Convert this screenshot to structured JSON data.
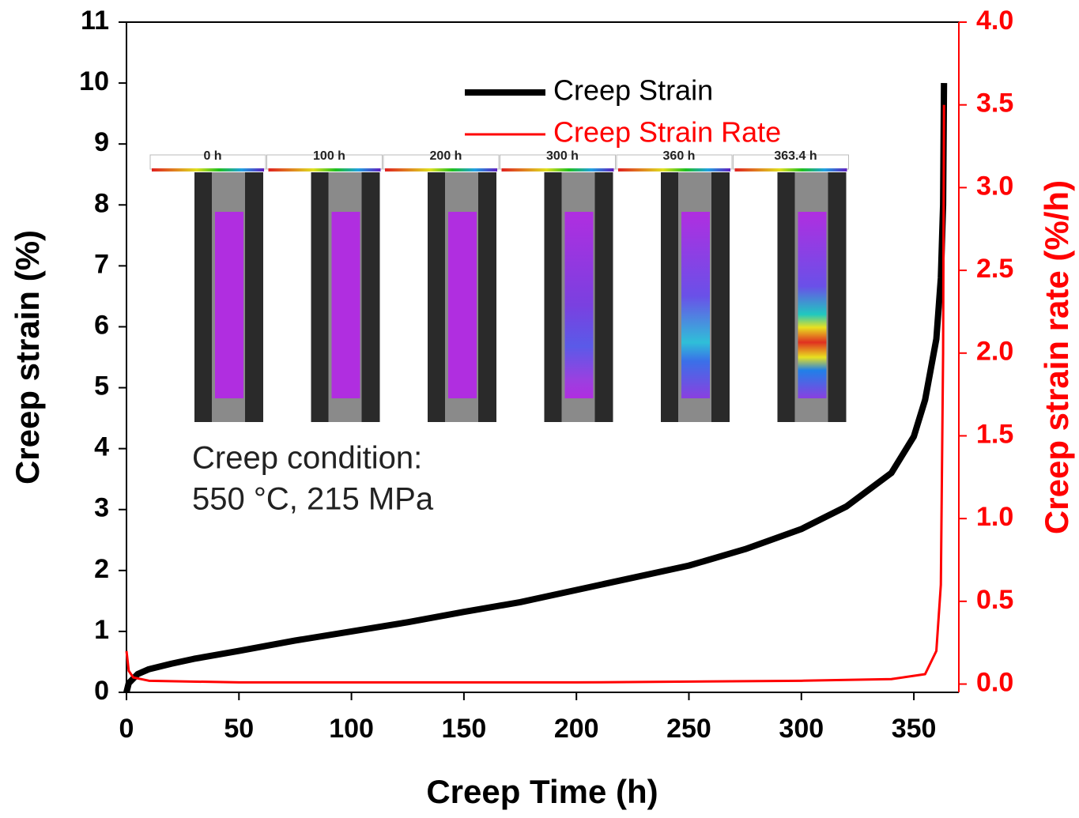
{
  "chart_data": {
    "type": "line",
    "x_label": "Creep Time (h)",
    "y_label": "Creep strain (%)",
    "y2_label": "Creep strain rate (%/h)",
    "xlim": [
      0,
      370
    ],
    "xticks": [
      0,
      50,
      100,
      150,
      200,
      250,
      300,
      350
    ],
    "ylim": [
      0,
      11
    ],
    "yticks": [
      0,
      1,
      2,
      3,
      4,
      5,
      6,
      7,
      8,
      9,
      10,
      11
    ],
    "y2lim": [
      -0.05,
      4.0
    ],
    "y2ticks": [
      {
        "value": 0,
        "label": "0.0"
      },
      0.5,
      {
        "value": 1,
        "label": "1.0"
      },
      1.5,
      {
        "value": 2,
        "label": "2.0"
      },
      2.5,
      {
        "value": 3,
        "label": "3.0"
      },
      3.5,
      {
        "value": 4,
        "label": "4.0"
      }
    ],
    "series": [
      {
        "name": "Creep Strain",
        "color": "#000000",
        "x": [
          0,
          1,
          5,
          10,
          20,
          30,
          50,
          75,
          100,
          125,
          150,
          175,
          200,
          225,
          250,
          275,
          300,
          320,
          340,
          350,
          355,
          360,
          362,
          363,
          363.4
        ],
        "values": [
          0,
          0.15,
          0.3,
          0.38,
          0.47,
          0.55,
          0.68,
          0.85,
          1.0,
          1.15,
          1.32,
          1.48,
          1.68,
          1.88,
          2.08,
          2.35,
          2.68,
          3.05,
          3.6,
          4.2,
          4.8,
          5.8,
          6.8,
          8,
          10
        ]
      },
      {
        "name": "Creep Strain Rate",
        "color": "#ff0000",
        "axis": "y2",
        "x": [
          0,
          1,
          3,
          10,
          50,
          100,
          200,
          300,
          340,
          355,
          360,
          362,
          363,
          363.4
        ],
        "values": [
          0.2,
          0.08,
          0.04,
          0.02,
          0.01,
          0.01,
          0.01,
          0.02,
          0.03,
          0.06,
          0.2,
          0.6,
          2.0,
          3.5
        ]
      }
    ],
    "annotations": [
      "Creep condition:",
      "550 °C, 215 MPa"
    ],
    "inset_labels": [
      "0 h",
      "100 h",
      "200 h",
      "300 h",
      "360 h",
      "363.4 h"
    ],
    "legend": "upper-center"
  }
}
